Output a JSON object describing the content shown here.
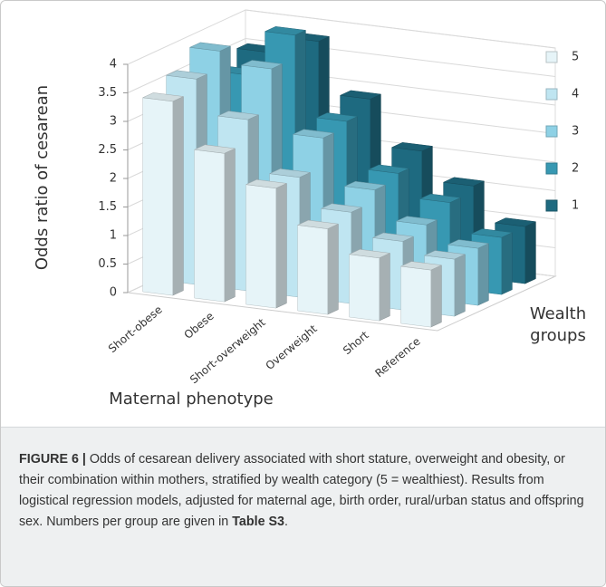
{
  "chart_data": {
    "type": "bar3d",
    "ylabel": "Odds ratio of cesarean",
    "xlabel": "Maternal phenotype",
    "legend_title": "Wealth groups",
    "categories": [
      "Short-obese",
      "Obese",
      "Short-overweight",
      "Overweight",
      "Short",
      "Reference"
    ],
    "series": [
      {
        "name": "5",
        "color": "#e6f4f8",
        "values": [
          3.4,
          2.6,
          2.1,
          1.5,
          1.1,
          1
        ]
      },
      {
        "name": "4",
        "color": "#bfe5f1",
        "values": [
          3.6,
          3.0,
          2.1,
          1.6,
          1.2,
          1
        ]
      },
      {
        "name": "3",
        "color": "#8ed1e5",
        "values": [
          3.9,
          3.7,
          2.6,
          1.8,
          1.3,
          1
        ]
      },
      {
        "name": "2",
        "color": "#3798b2",
        "values": [
          3.3,
          4.1,
          2.7,
          1.9,
          1.5,
          1
        ]
      },
      {
        "name": "1",
        "color": "#1e6a80",
        "values": [
          3.5,
          3.8,
          2.9,
          2.1,
          1.6,
          1
        ]
      }
    ],
    "ylim": [
      0,
      4
    ],
    "yticks": [
      0,
      0.5,
      1,
      1.5,
      2,
      2.5,
      3,
      3.5,
      4
    ],
    "grid": true
  },
  "caption": {
    "label": "FIGURE 6 |",
    "text": "Odds of cesarean delivery associated with short stature, overweight and obesity, or their combination within mothers, stratified by wealth category (5 = wealthiest). Results from logistical regression models, adjusted for maternal age, birth order, rural/urban status and offspring sex. Numbers per group are given in",
    "ref": "Table S3",
    "end": "."
  }
}
